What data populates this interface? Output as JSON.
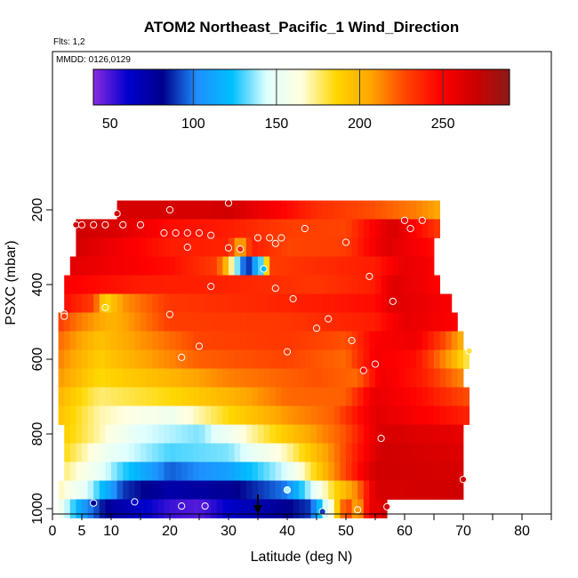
{
  "chart_data": {
    "type": "heatmap",
    "title": "ATOM2 Northeast_Pacific_1 Wind_Direction",
    "subtitle_flights": "Flts: 1,2",
    "subtitle_dates": "MMDD: 0126,0129",
    "xlabel": "Latitude (deg N)",
    "ylabel": "PSXC (mbar)",
    "xlim": [
      0,
      85
    ],
    "ylim": [
      1000,
      0
    ],
    "x_ticks": [
      0,
      5,
      10,
      20,
      30,
      40,
      50,
      60,
      70,
      80
    ],
    "x_minor_ticks": [
      15,
      25,
      35,
      45,
      55,
      65,
      75,
      85
    ],
    "y_ticks": [
      200,
      400,
      600,
      800,
      1000
    ],
    "colorbar": {
      "min": 40,
      "max": 290,
      "ticks": [
        50,
        100,
        150,
        200,
        250
      ],
      "colors": [
        "#8b2be2",
        "#0000cd",
        "#00008b",
        "#1e90ff",
        "#00bfff",
        "#e0ffff",
        "#ffffe0",
        "#ffd700",
        "#ffa500",
        "#ff4500",
        "#ff0000",
        "#cd0000",
        "#8b1a1a"
      ]
    },
    "bands": [
      {
        "p": 200,
        "latmin": 11,
        "latmax": 66,
        "stops": [
          [
            11,
            265
          ],
          [
            25,
            265
          ],
          [
            30,
            268
          ],
          [
            45,
            235
          ],
          [
            55,
            225
          ],
          [
            62,
            215
          ],
          [
            66,
            205
          ]
        ]
      },
      {
        "p": 250,
        "latmin": 4,
        "latmax": 66,
        "stops": [
          [
            4,
            268
          ],
          [
            10,
            265
          ],
          [
            20,
            245
          ],
          [
            30,
            240
          ],
          [
            40,
            230
          ],
          [
            50,
            228
          ],
          [
            58,
            265
          ],
          [
            66,
            230
          ]
        ]
      },
      {
        "p": 300,
        "latmin": 4,
        "latmax": 65,
        "stops": [
          [
            4,
            266
          ],
          [
            10,
            255
          ],
          [
            20,
            240
          ],
          [
            30,
            238
          ],
          [
            32,
            200
          ],
          [
            34,
            240
          ],
          [
            40,
            228
          ],
          [
            50,
            230
          ],
          [
            57,
            262
          ],
          [
            65,
            245
          ]
        ]
      },
      {
        "p": 350,
        "latmin": 3,
        "latmax": 65,
        "stops": [
          [
            3,
            260
          ],
          [
            20,
            245
          ],
          [
            28,
            230
          ],
          [
            30,
            190
          ],
          [
            33,
            80
          ],
          [
            36,
            140
          ],
          [
            37,
            230
          ],
          [
            45,
            235
          ],
          [
            55,
            240
          ],
          [
            60,
            258
          ],
          [
            65,
            250
          ]
        ]
      },
      {
        "p": 400,
        "latmin": 2,
        "latmax": 66,
        "stops": [
          [
            2,
            250
          ],
          [
            15,
            240
          ],
          [
            30,
            238
          ],
          [
            45,
            232
          ],
          [
            55,
            240
          ],
          [
            58,
            262
          ],
          [
            66,
            248
          ]
        ]
      },
      {
        "p": 450,
        "latmin": 2,
        "latmax": 68,
        "stops": [
          [
            2,
            245
          ],
          [
            7,
            230
          ],
          [
            9,
            185
          ],
          [
            12,
            210
          ],
          [
            20,
            232
          ],
          [
            40,
            238
          ],
          [
            55,
            245
          ],
          [
            58,
            262
          ],
          [
            68,
            250
          ]
        ]
      },
      {
        "p": 500,
        "latmin": 1,
        "latmax": 69,
        "stops": [
          [
            1,
            230
          ],
          [
            5,
            215
          ],
          [
            10,
            200
          ],
          [
            15,
            215
          ],
          [
            20,
            230
          ],
          [
            40,
            232
          ],
          [
            55,
            240
          ],
          [
            60,
            258
          ],
          [
            69,
            248
          ]
        ]
      },
      {
        "p": 550,
        "latmin": 1,
        "latmax": 70,
        "stops": [
          [
            1,
            220
          ],
          [
            8,
            195
          ],
          [
            15,
            210
          ],
          [
            25,
            228
          ],
          [
            40,
            232
          ],
          [
            50,
            225
          ],
          [
            55,
            250
          ],
          [
            62,
            255
          ],
          [
            67,
            225
          ],
          [
            70,
            200
          ]
        ]
      },
      {
        "p": 600,
        "latmin": 1,
        "latmax": 71,
        "stops": [
          [
            1,
            215
          ],
          [
            8,
            190
          ],
          [
            15,
            205
          ],
          [
            25,
            222
          ],
          [
            40,
            228
          ],
          [
            50,
            220
          ],
          [
            55,
            252
          ],
          [
            62,
            245
          ],
          [
            68,
            205
          ],
          [
            71,
            175
          ]
        ]
      },
      {
        "p": 650,
        "latmin": 1,
        "latmax": 70,
        "stops": [
          [
            1,
            210
          ],
          [
            8,
            185
          ],
          [
            20,
            200
          ],
          [
            30,
            215
          ],
          [
            45,
            225
          ],
          [
            52,
            220
          ],
          [
            56,
            255
          ],
          [
            63,
            240
          ],
          [
            70,
            212
          ]
        ]
      },
      {
        "p": 700,
        "latmin": 1,
        "latmax": 71,
        "stops": [
          [
            1,
            200
          ],
          [
            8,
            175
          ],
          [
            20,
            185
          ],
          [
            30,
            200
          ],
          [
            40,
            220
          ],
          [
            50,
            222
          ],
          [
            55,
            258
          ],
          [
            63,
            245
          ],
          [
            71,
            225
          ]
        ]
      },
      {
        "p": 750,
        "latmin": 1,
        "latmax": 71,
        "stops": [
          [
            1,
            195
          ],
          [
            8,
            170
          ],
          [
            20,
            155
          ],
          [
            30,
            185
          ],
          [
            40,
            210
          ],
          [
            48,
            222
          ],
          [
            55,
            260
          ],
          [
            63,
            250
          ],
          [
            71,
            238
          ]
        ]
      },
      {
        "p": 800,
        "latmin": 2,
        "latmax": 70,
        "stops": [
          [
            2,
            190
          ],
          [
            8,
            170
          ],
          [
            15,
            145
          ],
          [
            25,
            135
          ],
          [
            35,
            175
          ],
          [
            45,
            210
          ],
          [
            50,
            225
          ],
          [
            56,
            265
          ],
          [
            70,
            258
          ]
        ]
      },
      {
        "p": 850,
        "latmin": 2,
        "latmax": 70,
        "stops": [
          [
            2,
            185
          ],
          [
            10,
            150
          ],
          [
            20,
            130
          ],
          [
            30,
            135
          ],
          [
            40,
            170
          ],
          [
            48,
            215
          ],
          [
            56,
            268
          ],
          [
            70,
            262
          ]
        ]
      },
      {
        "p": 900,
        "latmin": 2,
        "latmax": 70,
        "stops": [
          [
            2,
            175
          ],
          [
            8,
            150
          ],
          [
            12,
            128
          ],
          [
            20,
            95
          ],
          [
            30,
            110
          ],
          [
            40,
            145
          ],
          [
            47,
            205
          ],
          [
            55,
            268
          ],
          [
            70,
            265
          ]
        ]
      },
      {
        "p": 950,
        "latmin": 1,
        "latmax": 70,
        "stops": [
          [
            1,
            170
          ],
          [
            6,
            145
          ],
          [
            12,
            90
          ],
          [
            20,
            72
          ],
          [
            30,
            78
          ],
          [
            40,
            100
          ],
          [
            48,
            185
          ],
          [
            52,
            215
          ],
          [
            55,
            265
          ],
          [
            70,
            268
          ]
        ]
      },
      {
        "p": 1000,
        "latmin": 1,
        "latmax": 57,
        "stops": [
          [
            1,
            160
          ],
          [
            5,
            110
          ],
          [
            10,
            75
          ],
          [
            20,
            52
          ],
          [
            25,
            48
          ],
          [
            30,
            62
          ],
          [
            36,
            72
          ],
          [
            44,
            90
          ],
          [
            48,
            175
          ],
          [
            50,
            235
          ],
          [
            52,
            200
          ],
          [
            54,
            255
          ],
          [
            57,
            265
          ]
        ]
      }
    ],
    "points": [
      {
        "lat": 11,
        "p": 210,
        "v": 265
      },
      {
        "lat": 20,
        "p": 200,
        "v": 265
      },
      {
        "lat": 30,
        "p": 182,
        "v": 268
      },
      {
        "lat": 4,
        "p": 240,
        "v": 268
      },
      {
        "lat": 5,
        "p": 240,
        "v": 265
      },
      {
        "lat": 7,
        "p": 240,
        "v": 265
      },
      {
        "lat": 9,
        "p": 240,
        "v": 265
      },
      {
        "lat": 12,
        "p": 240,
        "v": 262
      },
      {
        "lat": 15,
        "p": 240,
        "v": 255
      },
      {
        "lat": 60,
        "p": 228,
        "v": 250
      },
      {
        "lat": 63,
        "p": 228,
        "v": 240
      },
      {
        "lat": 61,
        "p": 250,
        "v": 255
      },
      {
        "lat": 19,
        "p": 262,
        "v": 245
      },
      {
        "lat": 21,
        "p": 262,
        "v": 245
      },
      {
        "lat": 23,
        "p": 262,
        "v": 242
      },
      {
        "lat": 25,
        "p": 262,
        "v": 240
      },
      {
        "lat": 27,
        "p": 268,
        "v": 240
      },
      {
        "lat": 43,
        "p": 250,
        "v": 230
      },
      {
        "lat": 23,
        "p": 300,
        "v": 240
      },
      {
        "lat": 30,
        "p": 302,
        "v": 238
      },
      {
        "lat": 32,
        "p": 305,
        "v": 236
      },
      {
        "lat": 35,
        "p": 275,
        "v": 232
      },
      {
        "lat": 37,
        "p": 275,
        "v": 230
      },
      {
        "lat": 39,
        "p": 275,
        "v": 230
      },
      {
        "lat": 38,
        "p": 290,
        "v": 230
      },
      {
        "lat": 50,
        "p": 287,
        "v": 232
      },
      {
        "lat": 36,
        "p": 358,
        "v": 120
      },
      {
        "lat": 54,
        "p": 378,
        "v": 238
      },
      {
        "lat": 27,
        "p": 405,
        "v": 238
      },
      {
        "lat": 38,
        "p": 410,
        "v": 235
      },
      {
        "lat": 41,
        "p": 438,
        "v": 232
      },
      {
        "lat": 58,
        "p": 445,
        "v": 260
      },
      {
        "lat": 2,
        "p": 478,
        "v": 230
      },
      {
        "lat": 2,
        "p": 485,
        "v": 230
      },
      {
        "lat": 9,
        "p": 462,
        "v": 185
      },
      {
        "lat": 20,
        "p": 480,
        "v": 232
      },
      {
        "lat": 47,
        "p": 492,
        "v": 236
      },
      {
        "lat": 45,
        "p": 517,
        "v": 232
      },
      {
        "lat": 51,
        "p": 550,
        "v": 225
      },
      {
        "lat": 25,
        "p": 565,
        "v": 228
      },
      {
        "lat": 71,
        "p": 578,
        "v": 180
      },
      {
        "lat": 40,
        "p": 580,
        "v": 230
      },
      {
        "lat": 22,
        "p": 595,
        "v": 220
      },
      {
        "lat": 55,
        "p": 613,
        "v": 252
      },
      {
        "lat": 53,
        "p": 630,
        "v": 248
      },
      {
        "lat": 56,
        "p": 812,
        "v": 266
      },
      {
        "lat": 70,
        "p": 922,
        "v": 265
      },
      {
        "lat": 40,
        "p": 950,
        "v": 140
      },
      {
        "lat": 7,
        "p": 985,
        "v": 80
      },
      {
        "lat": 14,
        "p": 982,
        "v": 60
      },
      {
        "lat": 22,
        "p": 993,
        "v": 52
      },
      {
        "lat": 26,
        "p": 993,
        "v": 48
      },
      {
        "lat": 46,
        "p": 1008,
        "v": 90
      },
      {
        "lat": 52,
        "p": 1003,
        "v": 210
      },
      {
        "lat": 57,
        "p": 995,
        "v": 265
      }
    ],
    "marker_lat": 35
  }
}
